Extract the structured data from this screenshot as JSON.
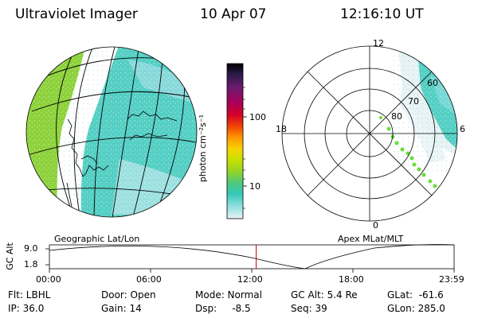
{
  "header": {
    "instrument": "Ultraviolet Imager",
    "date": "10 Apr 07",
    "time": "12:16:10 UT"
  },
  "colorbar": {
    "unit_label": "photon cm⁻²s⁻¹",
    "ticks": [
      "100",
      "10"
    ],
    "colors": [
      "#000000",
      "#2b1a4a",
      "#6a1a6e",
      "#a8005a",
      "#d4002a",
      "#f04a00",
      "#ff9a00",
      "#f5d400",
      "#c8e000",
      "#8fd42a",
      "#4fc87a",
      "#33c9b8",
      "#8fdfe0",
      "#e8f4f6"
    ]
  },
  "left_panel": {
    "caption": "Geographic Lat/Lon"
  },
  "right_panel": {
    "caption": "Apex MLat/MLT",
    "mlt_labels": {
      "top": "12",
      "left": "18",
      "right": "6",
      "bottom": "0"
    },
    "lat_labels": [
      "60",
      "70",
      "80"
    ]
  },
  "altitude_plot": {
    "ylabel": "GC Alt",
    "y_ticks": [
      "9.0",
      "1.8"
    ],
    "x_ticks": [
      "00:00",
      "06:00",
      "12:00",
      "18:00",
      "23:59"
    ],
    "current_time_fraction": 0.511,
    "line_color": "#cc0000"
  },
  "status": {
    "flt": "Flt: LBHL",
    "ip": "IP: 36.0",
    "door": "Door: Open",
    "gain": "Gain: 14",
    "mode": "Mode: Normal",
    "dsp": "Dsp:     -8.5",
    "gc_alt": "GC Alt: 5.4 Re",
    "seq": "Seq: 39",
    "glat": "GLat:  -61.6",
    "glon": "GLon: 285.0"
  }
}
